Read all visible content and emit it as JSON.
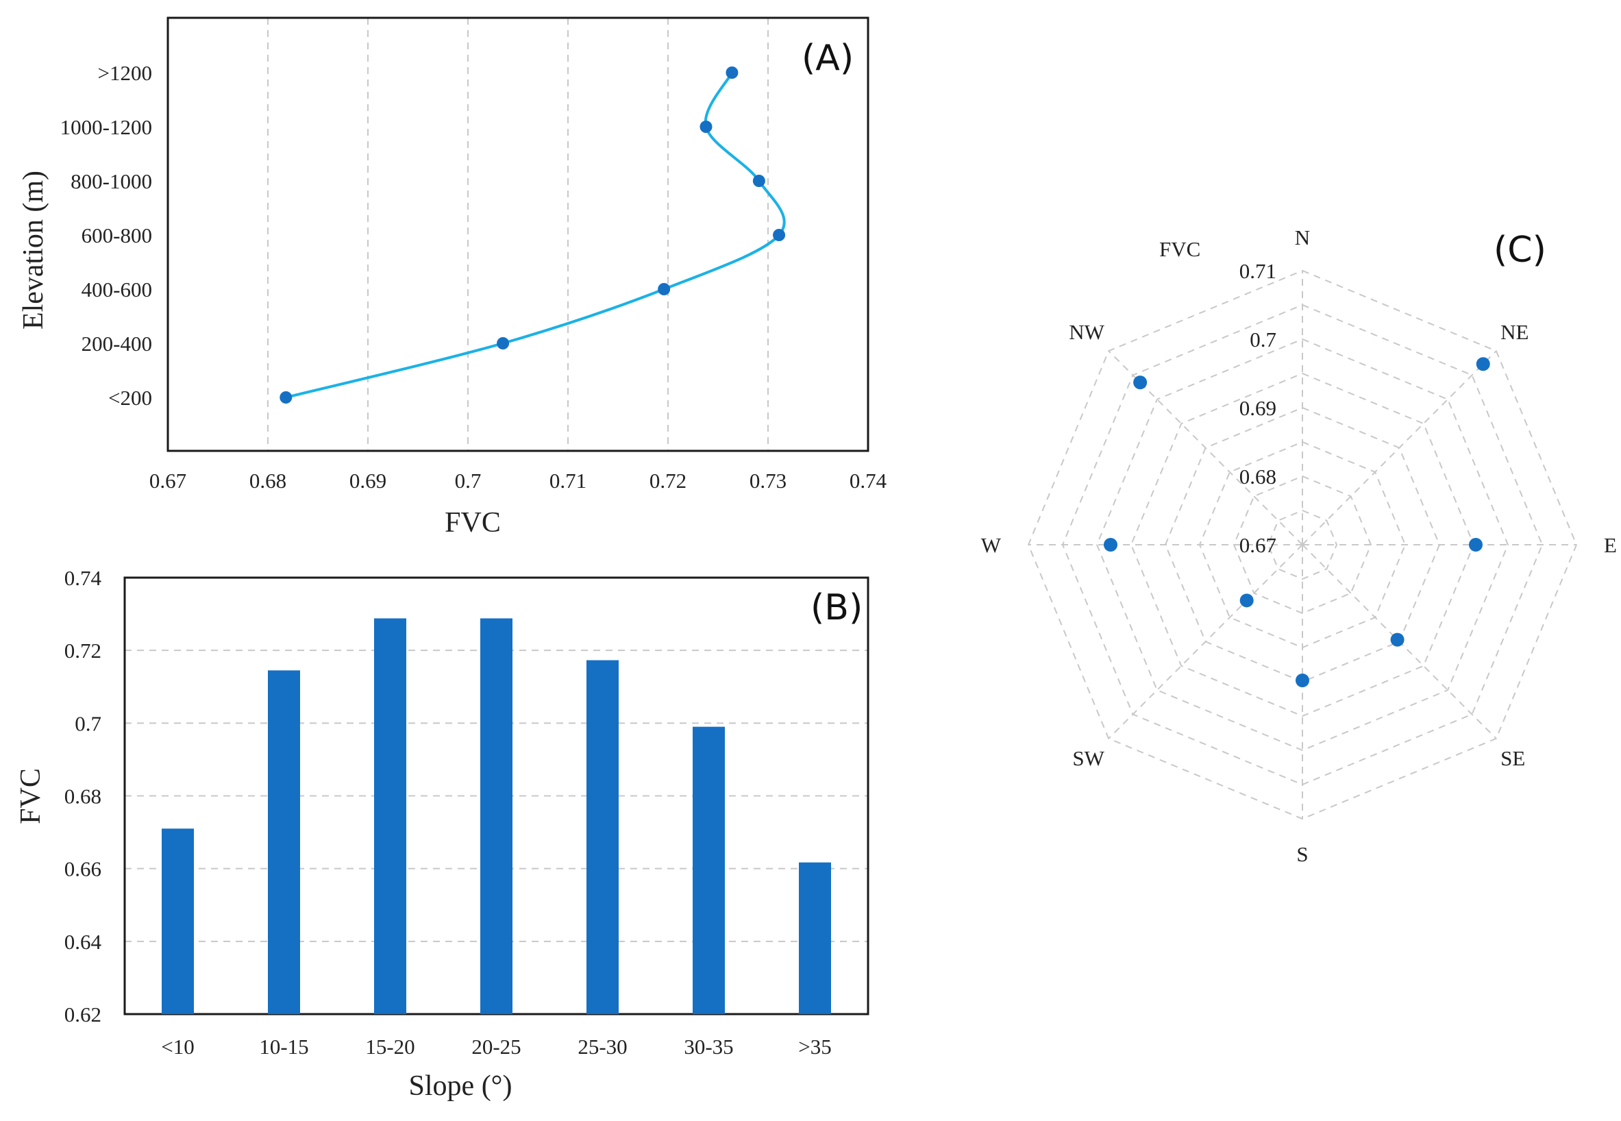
{
  "chart_data": [
    {
      "panel": "(A)",
      "type": "line",
      "orientation": "horizontal",
      "xlabel": "FVC",
      "ylabel": "Elevation (m)",
      "xlim": [
        0.67,
        0.74
      ],
      "xticks": [
        "0.67",
        "0.68",
        "0.69",
        "0.7",
        "0.71",
        "0.72",
        "0.73",
        "0.74"
      ],
      "categories": [
        "<200",
        "200-400",
        "400-600",
        "600-800",
        "800-1000",
        "1000-1200",
        ">1200"
      ],
      "values": [
        0.6818,
        0.7035,
        0.7196,
        0.7311,
        0.7291,
        0.7238,
        0.7264
      ],
      "color": "#1570c4",
      "line_color": "#1ab2e6",
      "smooth": true,
      "grid": "vertical dashed"
    },
    {
      "panel": "(B)",
      "type": "bar",
      "xlabel": "Slope (°)",
      "ylabel": "FVC",
      "ylim": [
        0.62,
        0.74
      ],
      "yticks": [
        "0.62",
        "0.64",
        "0.66",
        "0.68",
        "0.7",
        "0.72",
        "0.74"
      ],
      "categories": [
        "<10",
        "10-15",
        "15-20",
        "20-25",
        "25-30",
        "30-35",
        ">35"
      ],
      "values": [
        0.671,
        0.7145,
        0.7288,
        0.7288,
        0.7173,
        0.699,
        0.6617
      ],
      "color": "#1570c4",
      "grid": "horizontal dashed"
    },
    {
      "panel": "(C)",
      "type": "radar",
      "rlabel": "FVC",
      "rlim": [
        0.67,
        0.71
      ],
      "rticks": [
        "0.67",
        "0.68",
        "0.69",
        "0.7",
        "0.71"
      ],
      "categories": [
        "N",
        "NE",
        "E",
        "SE",
        "S",
        "SW",
        "W",
        "NW"
      ],
      "values": [
        null,
        0.7073,
        0.6953,
        0.6896,
        0.6898,
        0.6815,
        0.698,
        0.7035
      ],
      "color": "#1570c4",
      "grid": "octagonal dashed"
    }
  ]
}
